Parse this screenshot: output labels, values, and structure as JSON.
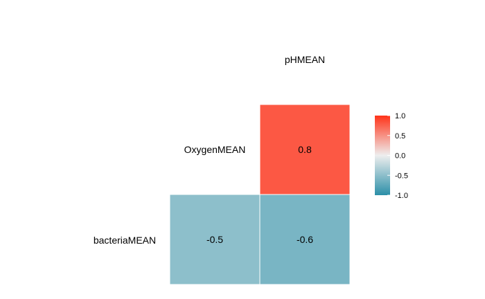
{
  "chart_data": {
    "type": "heatmap",
    "layout": "lower-triangle correlation matrix",
    "variables": [
      "bacteriaMEAN",
      "OxygenMEAN",
      "pHMEAN"
    ],
    "cells": [
      {
        "row": "OxygenMEAN",
        "col": "pHMEAN",
        "value": 0.8,
        "label": "0.8"
      },
      {
        "row": "bacteriaMEAN",
        "col": "OxygenMEAN",
        "value": -0.5,
        "label": "-0.5"
      },
      {
        "row": "bacteriaMEAN",
        "col": "pHMEAN",
        "value": -0.6,
        "label": "-0.6"
      }
    ],
    "legend": {
      "placement": "right",
      "range": [
        -1.0,
        1.0
      ],
      "ticks": [
        1.0,
        0.5,
        0.0,
        -0.5,
        -1.0
      ],
      "tick_labels": [
        "1.0",
        "0.5",
        "0.0",
        "-0.5",
        "-1.0"
      ],
      "colors": {
        "low": "#2b8fa8",
        "mid": "#eeeeee",
        "high": "#ff3319"
      }
    }
  }
}
